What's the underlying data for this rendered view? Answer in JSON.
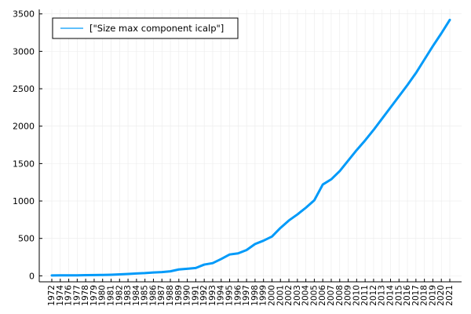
{
  "chart_data": {
    "type": "line",
    "title": "",
    "xlabel": "",
    "ylabel": "",
    "grid": true,
    "legend_position": "top-left",
    "ylim": [
      -80,
      3560
    ],
    "yticks": [
      0,
      500,
      1000,
      1500,
      2000,
      2500,
      3000,
      3500
    ],
    "ytick_labels": [
      "0",
      "500",
      "1000",
      "1500",
      "2000",
      "2500",
      "3000",
      "3500"
    ],
    "categories": [
      "1972",
      "1974",
      "1976",
      "1977",
      "1978",
      "1979",
      "1980",
      "1981",
      "1982",
      "1983",
      "1984",
      "1985",
      "1986",
      "1987",
      "1988",
      "1989",
      "1990",
      "1991",
      "1992",
      "1993",
      "1994",
      "1995",
      "1996",
      "1997",
      "1998",
      "1999",
      "2000",
      "2001",
      "2002",
      "2003",
      "2004",
      "2005",
      "2006",
      "2007",
      "2008",
      "2009",
      "2010",
      "2011",
      "2012",
      "2013",
      "2014",
      "2015",
      "2016",
      "2017",
      "2018",
      "2019",
      "2020",
      "2021"
    ],
    "series": [
      {
        "name": "[\"Size max component icalp\"]",
        "color": "#009AF9",
        "values": [
          5,
          6,
          7,
          7,
          9,
          11,
          12,
          15,
          20,
          25,
          32,
          37,
          45,
          50,
          60,
          85,
          95,
          105,
          150,
          170,
          225,
          285,
          300,
          345,
          425,
          470,
          525,
          640,
          740,
          820,
          910,
          1010,
          1220,
          1290,
          1400,
          1540,
          1680,
          1810,
          1950,
          2100,
          2250,
          2400,
          2550,
          2710,
          2890,
          3070,
          3240,
          3420
        ]
      }
    ]
  },
  "colors": {
    "series": "#009AF9",
    "grid": "#ebebeb",
    "axis": "#000000"
  }
}
